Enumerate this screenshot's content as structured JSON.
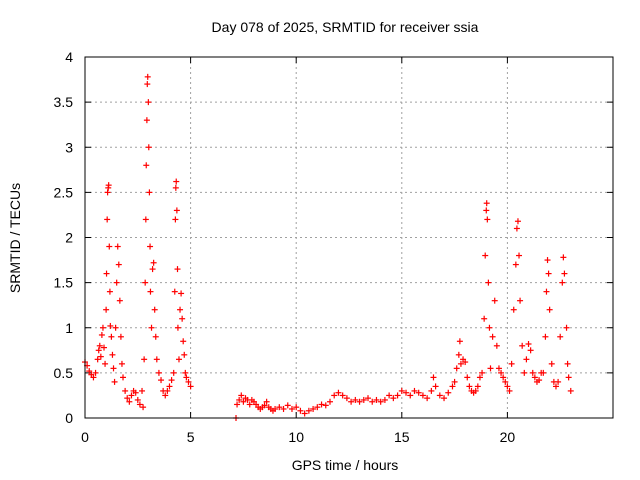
{
  "chart_data": {
    "type": "scatter",
    "title": "Day 078 of 2025, SRMTID for receiver ssia",
    "xlabel": "GPS time / hours",
    "ylabel": "SRMTID / TECUs",
    "xlim": [
      0,
      25
    ],
    "ylim": [
      0,
      4
    ],
    "xticks": [
      0,
      5,
      10,
      15,
      20
    ],
    "xtick_labels": [
      "0",
      "5",
      "10",
      "15",
      "20"
    ],
    "yticks": [
      0,
      0.5,
      1,
      1.5,
      2,
      2.5,
      3,
      3.5,
      4
    ],
    "ytick_labels": [
      "0",
      "0.5",
      "1",
      "1.5",
      "2",
      "2.5",
      "3",
      "3.5",
      "4"
    ],
    "grid": true,
    "marker": "+",
    "series": [
      {
        "name": "SRMTID",
        "color": "#ff0000",
        "points": [
          [
            0.0,
            0.62
          ],
          [
            0.1,
            0.58
          ],
          [
            0.2,
            0.52
          ],
          [
            0.3,
            0.48
          ],
          [
            0.4,
            0.45
          ],
          [
            0.5,
            0.5
          ],
          [
            0.6,
            0.65
          ],
          [
            0.65,
            0.75
          ],
          [
            0.7,
            0.8
          ],
          [
            0.75,
            0.68
          ],
          [
            0.8,
            0.92
          ],
          [
            0.85,
            1.0
          ],
          [
            0.9,
            0.78
          ],
          [
            0.95,
            0.6
          ],
          [
            1.0,
            1.2
          ],
          [
            1.02,
            1.6
          ],
          [
            1.05,
            2.2
          ],
          [
            1.07,
            2.5
          ],
          [
            1.1,
            2.55
          ],
          [
            1.12,
            2.58
          ],
          [
            1.15,
            1.9
          ],
          [
            1.18,
            1.4
          ],
          [
            1.2,
            1.02
          ],
          [
            1.25,
            0.9
          ],
          [
            1.3,
            0.7
          ],
          [
            1.35,
            0.55
          ],
          [
            1.4,
            0.4
          ],
          [
            1.45,
            1.0
          ],
          [
            1.5,
            1.5
          ],
          [
            1.55,
            1.9
          ],
          [
            1.6,
            1.7
          ],
          [
            1.65,
            1.3
          ],
          [
            1.7,
            0.9
          ],
          [
            1.75,
            0.6
          ],
          [
            1.8,
            0.45
          ],
          [
            1.9,
            0.3
          ],
          [
            2.0,
            0.22
          ],
          [
            2.1,
            0.18
          ],
          [
            2.2,
            0.25
          ],
          [
            2.3,
            0.3
          ],
          [
            2.4,
            0.28
          ],
          [
            2.5,
            0.2
          ],
          [
            2.6,
            0.15
          ],
          [
            2.7,
            0.3
          ],
          [
            2.75,
            0.12
          ],
          [
            2.8,
            0.65
          ],
          [
            2.85,
            1.5
          ],
          [
            2.88,
            2.2
          ],
          [
            2.9,
            2.8
          ],
          [
            2.93,
            3.3
          ],
          [
            2.95,
            3.7
          ],
          [
            2.97,
            3.78
          ],
          [
            3.0,
            3.5
          ],
          [
            3.02,
            3.0
          ],
          [
            3.05,
            2.5
          ],
          [
            3.08,
            1.9
          ],
          [
            3.1,
            1.4
          ],
          [
            3.15,
            1.0
          ],
          [
            3.2,
            1.65
          ],
          [
            3.25,
            1.72
          ],
          [
            3.3,
            1.2
          ],
          [
            3.35,
            0.9
          ],
          [
            3.4,
            0.65
          ],
          [
            3.5,
            0.5
          ],
          [
            3.6,
            0.42
          ],
          [
            3.7,
            0.3
          ],
          [
            3.8,
            0.25
          ],
          [
            3.9,
            0.3
          ],
          [
            4.0,
            0.35
          ],
          [
            4.1,
            0.42
          ],
          [
            4.2,
            0.5
          ],
          [
            4.25,
            1.4
          ],
          [
            4.28,
            2.2
          ],
          [
            4.3,
            2.55
          ],
          [
            4.32,
            2.62
          ],
          [
            4.35,
            2.3
          ],
          [
            4.38,
            1.65
          ],
          [
            4.4,
            1.0
          ],
          [
            4.45,
            0.65
          ],
          [
            4.5,
            1.2
          ],
          [
            4.55,
            1.38
          ],
          [
            4.6,
            1.1
          ],
          [
            4.65,
            0.85
          ],
          [
            4.7,
            0.7
          ],
          [
            4.75,
            0.5
          ],
          [
            4.8,
            0.45
          ],
          [
            4.9,
            0.4
          ],
          [
            5.0,
            0.35
          ],
          [
            7.15,
            0.0
          ],
          [
            7.2,
            0.15
          ],
          [
            7.3,
            0.2
          ],
          [
            7.4,
            0.25
          ],
          [
            7.5,
            0.18
          ],
          [
            7.6,
            0.22
          ],
          [
            7.7,
            0.2
          ],
          [
            7.8,
            0.15
          ],
          [
            7.9,
            0.2
          ],
          [
            8.0,
            0.18
          ],
          [
            8.1,
            0.15
          ],
          [
            8.2,
            0.12
          ],
          [
            8.3,
            0.1
          ],
          [
            8.4,
            0.12
          ],
          [
            8.5,
            0.14
          ],
          [
            8.6,
            0.18
          ],
          [
            8.7,
            0.12
          ],
          [
            8.8,
            0.1
          ],
          [
            8.9,
            0.08
          ],
          [
            9.0,
            0.1
          ],
          [
            9.2,
            0.12
          ],
          [
            9.4,
            0.1
          ],
          [
            9.6,
            0.14
          ],
          [
            9.8,
            0.1
          ],
          [
            10.0,
            0.12
          ],
          [
            10.2,
            0.08
          ],
          [
            10.4,
            0.05
          ],
          [
            10.6,
            0.08
          ],
          [
            10.8,
            0.1
          ],
          [
            11.0,
            0.12
          ],
          [
            11.2,
            0.15
          ],
          [
            11.4,
            0.14
          ],
          [
            11.6,
            0.18
          ],
          [
            11.8,
            0.25
          ],
          [
            12.0,
            0.28
          ],
          [
            12.2,
            0.25
          ],
          [
            12.4,
            0.22
          ],
          [
            12.6,
            0.18
          ],
          [
            12.8,
            0.2
          ],
          [
            13.0,
            0.18
          ],
          [
            13.2,
            0.2
          ],
          [
            13.4,
            0.22
          ],
          [
            13.6,
            0.18
          ],
          [
            13.8,
            0.2
          ],
          [
            14.0,
            0.18
          ],
          [
            14.2,
            0.2
          ],
          [
            14.4,
            0.25
          ],
          [
            14.6,
            0.22
          ],
          [
            14.8,
            0.25
          ],
          [
            15.0,
            0.3
          ],
          [
            15.2,
            0.28
          ],
          [
            15.4,
            0.25
          ],
          [
            15.6,
            0.3
          ],
          [
            15.8,
            0.28
          ],
          [
            16.0,
            0.25
          ],
          [
            16.2,
            0.22
          ],
          [
            16.4,
            0.3
          ],
          [
            16.5,
            0.45
          ],
          [
            16.6,
            0.35
          ],
          [
            16.8,
            0.25
          ],
          [
            17.0,
            0.22
          ],
          [
            17.2,
            0.28
          ],
          [
            17.4,
            0.35
          ],
          [
            17.5,
            0.4
          ],
          [
            17.6,
            0.55
          ],
          [
            17.7,
            0.7
          ],
          [
            17.75,
            0.85
          ],
          [
            17.8,
            0.6
          ],
          [
            17.9,
            0.65
          ],
          [
            18.0,
            0.62
          ],
          [
            18.1,
            0.45
          ],
          [
            18.2,
            0.35
          ],
          [
            18.3,
            0.3
          ],
          [
            18.4,
            0.28
          ],
          [
            18.5,
            0.3
          ],
          [
            18.6,
            0.35
          ],
          [
            18.7,
            0.45
          ],
          [
            18.8,
            0.5
          ],
          [
            18.9,
            1.1
          ],
          [
            18.95,
            1.8
          ],
          [
            19.0,
            2.3
          ],
          [
            19.02,
            2.38
          ],
          [
            19.05,
            2.2
          ],
          [
            19.1,
            1.5
          ],
          [
            19.15,
            1.0
          ],
          [
            19.2,
            0.55
          ],
          [
            19.3,
            0.9
          ],
          [
            19.4,
            1.3
          ],
          [
            19.5,
            0.8
          ],
          [
            19.6,
            0.55
          ],
          [
            19.7,
            0.5
          ],
          [
            19.8,
            0.45
          ],
          [
            19.9,
            0.4
          ],
          [
            20.0,
            0.35
          ],
          [
            20.1,
            0.3
          ],
          [
            20.2,
            0.6
          ],
          [
            20.3,
            1.2
          ],
          [
            20.4,
            1.7
          ],
          [
            20.45,
            2.1
          ],
          [
            20.5,
            2.18
          ],
          [
            20.55,
            1.8
          ],
          [
            20.6,
            1.3
          ],
          [
            20.7,
            0.8
          ],
          [
            20.8,
            0.5
          ],
          [
            20.9,
            0.65
          ],
          [
            21.0,
            0.82
          ],
          [
            21.1,
            0.75
          ],
          [
            21.2,
            0.5
          ],
          [
            21.3,
            0.45
          ],
          [
            21.4,
            0.4
          ],
          [
            21.5,
            0.42
          ],
          [
            21.6,
            0.5
          ],
          [
            21.7,
            0.5
          ],
          [
            21.8,
            0.9
          ],
          [
            21.85,
            1.4
          ],
          [
            21.9,
            1.75
          ],
          [
            21.95,
            1.6
          ],
          [
            22.0,
            1.2
          ],
          [
            22.1,
            0.6
          ],
          [
            22.2,
            0.4
          ],
          [
            22.3,
            0.35
          ],
          [
            22.4,
            0.4
          ],
          [
            22.5,
            0.9
          ],
          [
            22.6,
            1.5
          ],
          [
            22.65,
            1.78
          ],
          [
            22.7,
            1.6
          ],
          [
            22.8,
            1.0
          ],
          [
            22.85,
            0.6
          ],
          [
            22.9,
            0.45
          ],
          [
            23.0,
            0.3
          ]
        ]
      }
    ]
  }
}
